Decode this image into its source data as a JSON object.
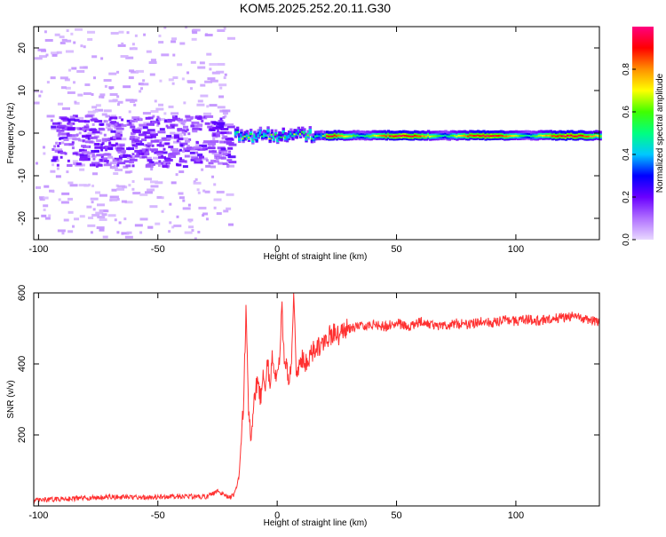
{
  "title": "KOM5.2025.252.20.11.G30",
  "chart_data": [
    {
      "type": "heatmap",
      "xlabel": "Height of straight line (km)",
      "ylabel": "Frequency (Hz)",
      "xlim": [
        -102,
        135
      ],
      "ylim": [
        -25,
        25
      ],
      "x_ticks": [
        -100,
        -50,
        0,
        50,
        100
      ],
      "y_ticks": [
        20,
        10,
        0,
        -10,
        -20
      ],
      "colorbar": {
        "label": "Normalized spectral amplitude",
        "range": [
          0,
          1
        ],
        "ticks": [
          "0.0",
          "0.2",
          "0.4",
          "0.6",
          "0.8"
        ],
        "colors": [
          "#e8d8ff",
          "#b070ff",
          "#6a00ff",
          "#0000ff",
          "#00c8ff",
          "#00ff80",
          "#40ff00",
          "#ffff00",
          "#ff9000",
          "#ff0000",
          "#ff0080"
        ]
      },
      "features": [
        {
          "description": "scattered weak returns",
          "x_range": [
            -102,
            -20
          ],
          "freq_range": [
            -25,
            25
          ],
          "amplitude": 0.05
        },
        {
          "description": "clustered moderate returns",
          "x_range": [
            -95,
            -20
          ],
          "freq_range": [
            -8,
            4
          ],
          "amplitude": 0.15
        },
        {
          "description": "main echo band",
          "x_range": [
            -18,
            135
          ],
          "freq_center": -0.5,
          "freq_halfwidth": 1.0,
          "peak_amplitude": 1.0
        }
      ]
    },
    {
      "type": "line",
      "xlabel": "Height of straight line (km)",
      "ylabel": "SNR (v/v)",
      "xlim": [
        -102,
        135
      ],
      "ylim": [
        0,
        600
      ],
      "x_ticks": [
        -100,
        -50,
        0,
        50,
        100
      ],
      "y_ticks": [
        200,
        400,
        600
      ],
      "series": [
        {
          "color": "#ff3030",
          "x": [
            -102,
            -90,
            -80,
            -70,
            -60,
            -50,
            -40,
            -30,
            -25,
            -22,
            -20,
            -18,
            -16,
            -14,
            -13,
            -12,
            -11,
            -10,
            -9,
            -8,
            -7,
            -6,
            -5,
            -4,
            -3,
            -2,
            -1,
            0,
            1,
            2,
            3,
            4,
            5,
            6,
            7,
            8,
            9,
            10,
            12,
            14,
            16,
            18,
            20,
            22,
            24,
            26,
            28,
            30,
            35,
            40,
            45,
            50,
            55,
            60,
            65,
            70,
            75,
            80,
            85,
            90,
            95,
            100,
            105,
            110,
            115,
            120,
            125,
            130,
            135
          ],
          "values": [
            15,
            20,
            22,
            25,
            24,
            25,
            28,
            25,
            40,
            30,
            25,
            30,
            80,
            300,
            570,
            250,
            200,
            280,
            330,
            360,
            300,
            380,
            350,
            400,
            330,
            420,
            380,
            350,
            410,
            570,
            380,
            400,
            350,
            420,
            600,
            370,
            380,
            420,
            400,
            430,
            440,
            450,
            470,
            480,
            490,
            480,
            500,
            500,
            505,
            510,
            505,
            515,
            505,
            520,
            510,
            505,
            515,
            510,
            520,
            515,
            525,
            520,
            525,
            520,
            530,
            530,
            535,
            525,
            520
          ]
        }
      ]
    }
  ]
}
